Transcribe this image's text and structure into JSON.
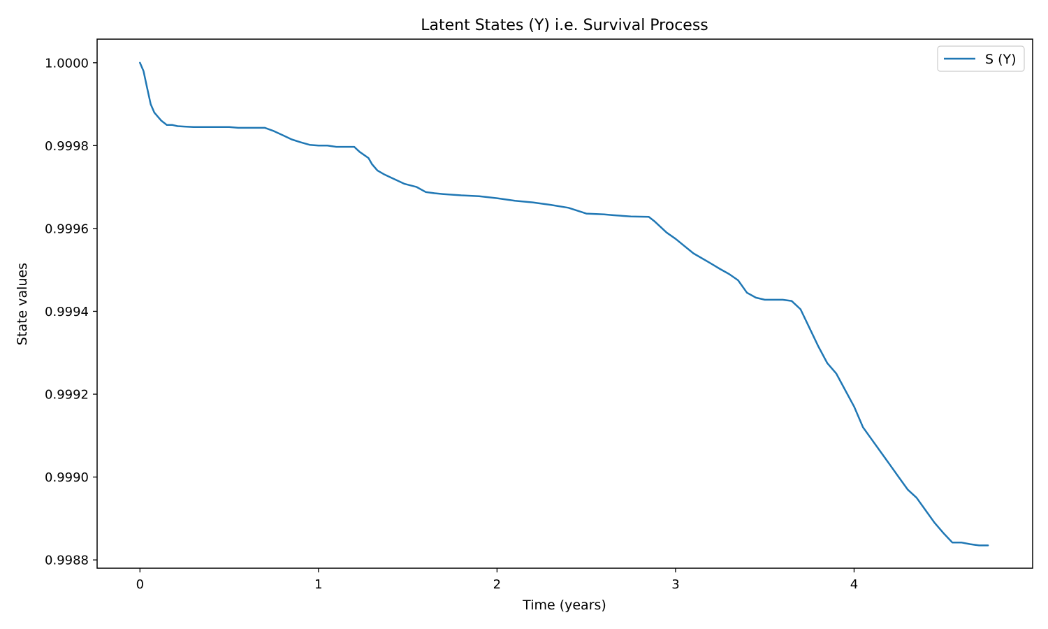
{
  "chart_data": {
    "type": "line",
    "title": "Latent States (Y) i.e. Survival Process",
    "xlabel": "Time (years)",
    "ylabel": "State values",
    "xlim": [
      -0.24,
      5.0
    ],
    "ylim": [
      0.99878,
      1.000057
    ],
    "xticks": [
      0,
      1,
      2,
      3,
      4
    ],
    "xtick_labels": [
      "0",
      "1",
      "2",
      "3",
      "4"
    ],
    "yticks": [
      0.9988,
      0.999,
      0.9992,
      0.9994,
      0.9996,
      0.9998,
      1.0
    ],
    "ytick_labels": [
      "0.9988",
      "0.9990",
      "0.9992",
      "0.9994",
      "0.9996",
      "0.9998",
      "1.0000"
    ],
    "legend_position": "upper right",
    "grid": false,
    "series": [
      {
        "name": "S (Y)",
        "color": "#1f77b4",
        "x": [
          0,
          0.02,
          0.04,
          0.06,
          0.08,
          0.1,
          0.12,
          0.15,
          0.18,
          0.21,
          0.25,
          0.3,
          0.4,
          0.5,
          0.55,
          0.6,
          0.7,
          0.75,
          0.8,
          0.85,
          0.9,
          0.95,
          1.0,
          1.05,
          1.1,
          1.2,
          1.23,
          1.28,
          1.3,
          1.33,
          1.37,
          1.42,
          1.48,
          1.55,
          1.6,
          1.65,
          1.7,
          1.8,
          1.9,
          2.0,
          2.1,
          2.2,
          2.3,
          2.4,
          2.45,
          2.5,
          2.6,
          2.65,
          2.75,
          2.85,
          2.88,
          2.95,
          3.0,
          3.1,
          3.2,
          3.25,
          3.3,
          3.35,
          3.4,
          3.45,
          3.5,
          3.6,
          3.65,
          3.7,
          3.75,
          3.8,
          3.85,
          3.9,
          3.95,
          4.0,
          4.05,
          4.1,
          4.15,
          4.2,
          4.25,
          4.3,
          4.35,
          4.4,
          4.45,
          4.5,
          4.55,
          4.6,
          4.65,
          4.7,
          4.75
        ],
        "y": [
          1.0,
          0.99998,
          0.99994,
          0.9999,
          0.99988,
          0.99987,
          0.99986,
          0.99985,
          0.99985,
          0.999847,
          0.999846,
          0.999845,
          0.999845,
          0.999845,
          0.999843,
          0.999843,
          0.999843,
          0.999835,
          0.999825,
          0.999815,
          0.999808,
          0.999802,
          0.9998,
          0.9998,
          0.999797,
          0.999797,
          0.999785,
          0.99977,
          0.999755,
          0.99974,
          0.99973,
          0.99972,
          0.999708,
          0.9997,
          0.999688,
          0.999685,
          0.999683,
          0.99968,
          0.999678,
          0.999673,
          0.999667,
          0.999663,
          0.999657,
          0.99965,
          0.999643,
          0.999636,
          0.999634,
          0.999632,
          0.999629,
          0.999628,
          0.999618,
          0.99959,
          0.999575,
          0.99954,
          0.999515,
          0.999502,
          0.99949,
          0.999475,
          0.999445,
          0.999433,
          0.999428,
          0.999428,
          0.999425,
          0.999405,
          0.99936,
          0.999315,
          0.999275,
          0.99925,
          0.99921,
          0.99917,
          0.99912,
          0.99909,
          0.99906,
          0.99903,
          0.999,
          0.99897,
          0.99895,
          0.99892,
          0.99889,
          0.998865,
          0.998842,
          0.998842,
          0.998838,
          0.998835,
          0.998835
        ]
      }
    ]
  }
}
